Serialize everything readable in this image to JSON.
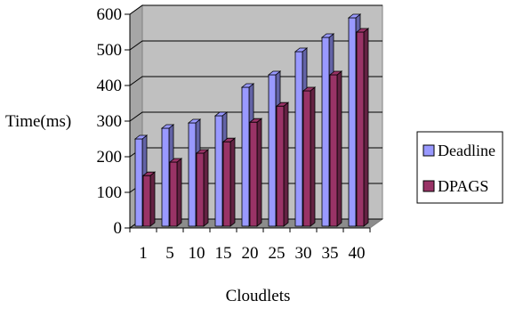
{
  "chart_data": {
    "type": "bar",
    "title": "",
    "xlabel": "Cloudlets",
    "ylabel": "Time(ms)",
    "categories": [
      "1",
      "5",
      "10",
      "15",
      "20",
      "25",
      "30",
      "35",
      "40"
    ],
    "series": [
      {
        "name": "Deadline",
        "color": "#9999ff",
        "values": [
          250,
          280,
          295,
          315,
          395,
          430,
          495,
          535,
          590
        ]
      },
      {
        "name": "DPAGS",
        "color": "#993366",
        "values": [
          147,
          185,
          210,
          242,
          297,
          342,
          385,
          430,
          550
        ]
      }
    ],
    "ylim": [
      0,
      600
    ],
    "yticks": [
      "0",
      "100",
      "200",
      "300",
      "400",
      "500",
      "600"
    ],
    "grid": true,
    "plot_background": "#c0c0c0",
    "legend_position": "right",
    "style": "3d-clustered-bar"
  }
}
